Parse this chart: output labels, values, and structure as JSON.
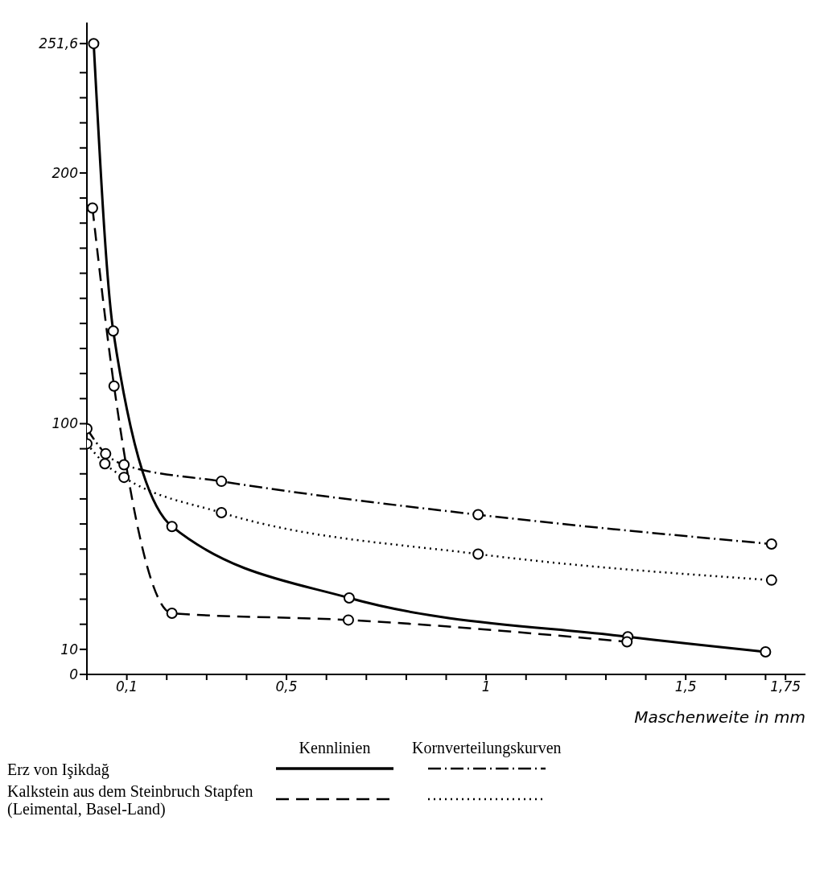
{
  "chart_data": {
    "type": "line",
    "xlabel": "Maschenweite in mm",
    "annotations": [
      "Kennlinien",
      "Kornverteilungskurven",
      "Erz von Işikdağ",
      "Kalkstein aus dem Steinbruch Stapfen (Leimental, Basel-Land)"
    ],
    "xlim": [
      0,
      1.8
    ],
    "ylim": [
      0,
      260
    ],
    "xticks": [
      {
        "value": 0,
        "label": null
      },
      {
        "value": 0.1,
        "label": "0,1"
      },
      {
        "value": 0.2,
        "label": null
      },
      {
        "value": 0.3,
        "label": null
      },
      {
        "value": 0.4,
        "label": null
      },
      {
        "value": 0.5,
        "label": "0,5"
      },
      {
        "value": 0.6,
        "label": null
      },
      {
        "value": 0.7,
        "label": null
      },
      {
        "value": 0.8,
        "label": null
      },
      {
        "value": 0.9,
        "label": null
      },
      {
        "value": 1,
        "label": "1"
      },
      {
        "value": 1.1,
        "label": null
      },
      {
        "value": 1.2,
        "label": null
      },
      {
        "value": 1.3,
        "label": null
      },
      {
        "value": 1.4,
        "label": null
      },
      {
        "value": 1.5,
        "label": "1,5"
      },
      {
        "value": 1.6,
        "label": null
      },
      {
        "value": 1.7,
        "label": null
      },
      {
        "value": 1.75,
        "label": "1,75"
      }
    ],
    "yticks": [
      0,
      10,
      {
        "value": 20,
        "label": null
      },
      {
        "value": 30,
        "label": null
      },
      {
        "value": 40,
        "label": null
      },
      {
        "value": 50,
        "label": null
      },
      {
        "value": 60,
        "label": null
      },
      {
        "value": 70,
        "label": null
      },
      {
        "value": 80,
        "label": null
      },
      {
        "value": 90,
        "label": null
      },
      100,
      {
        "value": 110,
        "label": null
      },
      {
        "value": 120,
        "label": null
      },
      {
        "value": 130,
        "label": null
      },
      {
        "value": 140,
        "label": null
      },
      {
        "value": 150,
        "label": null
      },
      {
        "value": 160,
        "label": null
      },
      {
        "value": 170,
        "label": null
      },
      {
        "value": 180,
        "label": null
      },
      {
        "value": 190,
        "label": null
      },
      200,
      {
        "value": 210,
        "label": null
      },
      {
        "value": 220,
        "label": null
      },
      {
        "value": 230,
        "label": null
      },
      {
        "value": 240,
        "label": null
      },
      {
        "value": 251.6,
        "label": "251,6"
      }
    ],
    "grid": false,
    "marker": "circle",
    "series": [
      {
        "color": "#000000",
        "line_style": "solid",
        "x": [
          0.017,
          0.066,
          0.213,
          0.657,
          1.355,
          1.7
        ],
        "values": [
          251.6,
          137,
          59,
          30.5,
          15,
          9
        ]
      },
      {
        "color": "#000000",
        "line_style": "dashed",
        "x": [
          0.014,
          0.068,
          0.213,
          0.655,
          1.353
        ],
        "values": [
          186,
          115,
          24.4,
          21.7,
          13
        ]
      },
      {
        "color": "#000000",
        "line_style": "dashdot",
        "x": [
          0,
          0.047,
          0.093,
          0.337,
          0.98,
          1.715
        ],
        "values": [
          98,
          88,
          83.6,
          77,
          63.7,
          52
        ]
      },
      {
        "color": "#000000",
        "line_style": "dotted",
        "x": [
          0,
          0.045,
          0.093,
          0.337,
          0.98,
          1.715
        ],
        "values": [
          92,
          84,
          78.6,
          64.5,
          48,
          37.6
        ]
      }
    ]
  }
}
